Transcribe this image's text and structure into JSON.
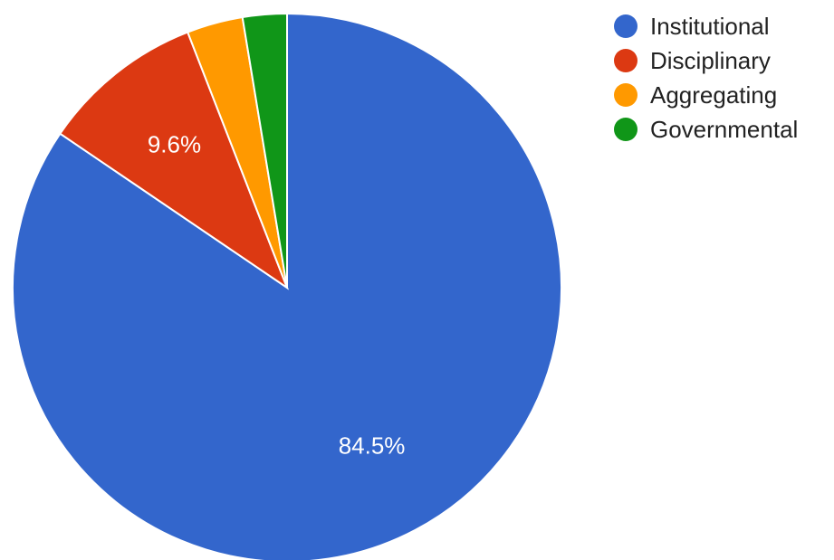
{
  "chart_data": {
    "type": "pie",
    "title": "",
    "categories": [
      "Institutional",
      "Disciplinary",
      "Aggregating",
      "Governmental"
    ],
    "values": [
      84.5,
      9.6,
      3.3,
      2.6
    ],
    "data_labels": [
      "84.5%",
      "9.6%",
      "",
      ""
    ],
    "colors": [
      "#3366cc",
      "#dc3912",
      "#ff9900",
      "#109618"
    ],
    "legend_position": "right"
  }
}
